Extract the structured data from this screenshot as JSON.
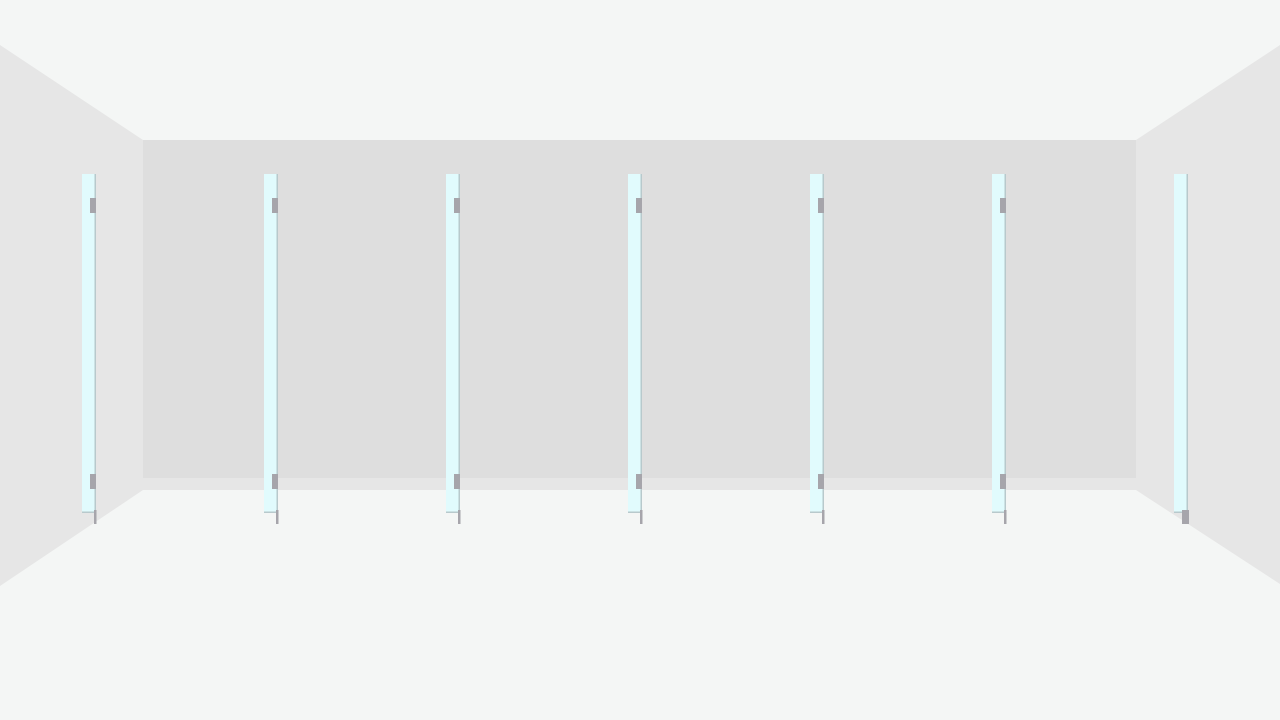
{
  "scene": {
    "description_free": true,
    "colors": {
      "ceiling": "#f4f6f5",
      "floor": "#f4f6f5",
      "side_wall": "#e6e6e6",
      "back_wall": "#dedede",
      "baseboard": "#e6e6e6",
      "door_glass": "#e1fbfd",
      "door_edge": "#b8c9cc",
      "hinge": "#a6a5ab"
    },
    "door_count": 7
  }
}
